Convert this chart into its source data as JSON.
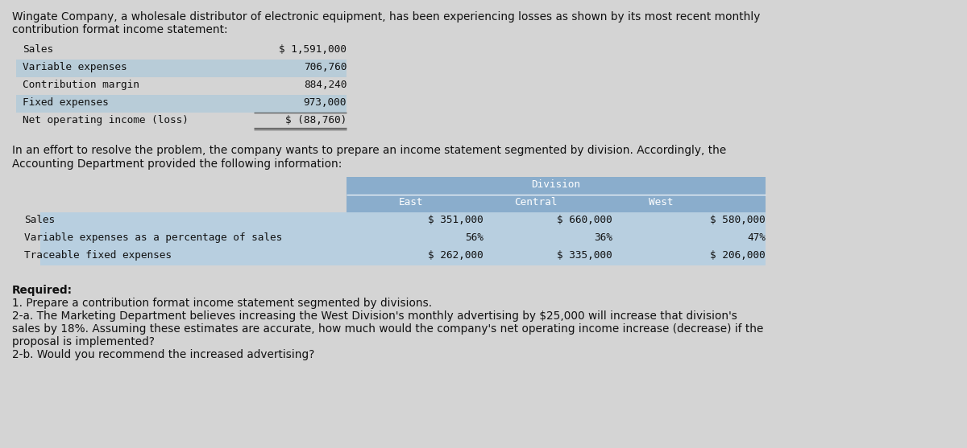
{
  "bg_color": "#d4d4d4",
  "intro_text_line1": "Wingate Company, a wholesale distributor of electronic equipment, has been experiencing losses as shown by its most recent monthly",
  "intro_text_line2": "contribution format income statement:",
  "income_stmt_rows": [
    {
      "label": "Sales",
      "value": "$ 1,591,000",
      "highlight": false
    },
    {
      "label": "Variable expenses",
      "value": "706,760",
      "highlight": true
    },
    {
      "label": "Contribution margin",
      "value": "884,240",
      "highlight": false
    },
    {
      "label": "Fixed expenses",
      "value": "973,000",
      "highlight": true
    },
    {
      "label": "Net operating income (loss)",
      "value": "$ (88,760)",
      "highlight": false
    }
  ],
  "middle_text_line1": "In an effort to resolve the problem, the company wants to prepare an income statement segmented by division. Accordingly, the",
  "middle_text_line2": "Accounting Department provided the following information:",
  "div_header_bg": "#8aadcc",
  "div_row_bg1": "#b8cfe0",
  "div_row_bg2": "#b8cfe0",
  "div_label_bg": "#b8cfe0",
  "div_col_header": [
    "East",
    "Central",
    "West"
  ],
  "div_rows": [
    {
      "label": "Sales",
      "east": "$ 351,000",
      "central": "$ 660,000",
      "west": "$ 580,000"
    },
    {
      "label": "Variable expenses as a percentage of sales",
      "east": "56%",
      "central": "36%",
      "west": "47%"
    },
    {
      "label": "Traceable fixed expenses",
      "east": "$ 262,000",
      "central": "$ 335,000",
      "west": "$ 206,000"
    }
  ],
  "req_line0": "Required:",
  "req_line1": "1. Prepare a contribution format income statement segmented by divisions.",
  "req_line2": "2-a. The Marketing Department believes increasing the West Division's monthly advertising by $25,000 will increase that division's",
  "req_line3": "sales by 18%. Assuming these estimates are accurate, how much would the company's net operating income increase (decrease) if the",
  "req_line4": "proposal is implemented?",
  "req_line5": "2-b. Would you recommend the increased advertising?"
}
